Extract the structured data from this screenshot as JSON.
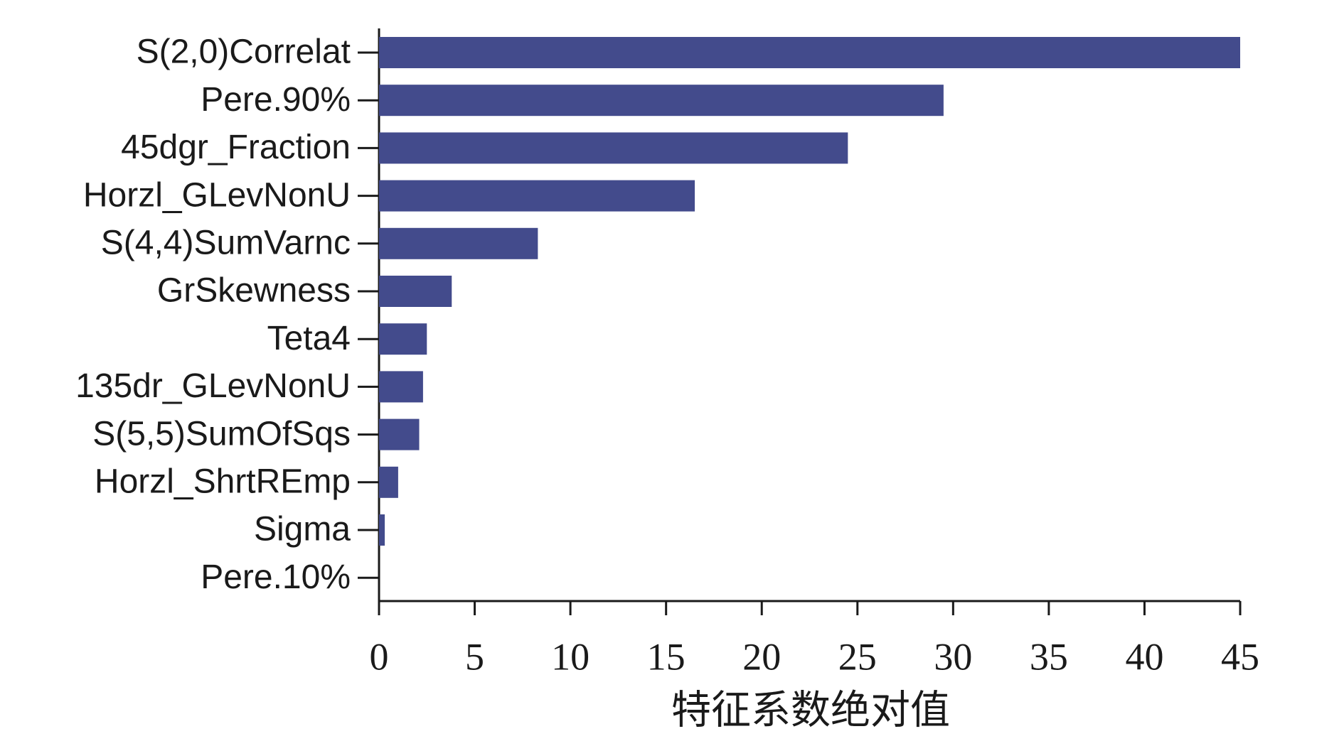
{
  "chart_data": {
    "type": "hbar",
    "x_label": "特征系数绝对值",
    "categories": [
      "S(2,0)Correlat",
      "Pere.90%",
      "45dgr_Fraction",
      "Horzl_GLevNonU",
      "S(4,4)SumVarnc",
      "GrSkewness",
      "Teta4",
      "135dr_GLevNonU",
      "S(5,5)SumOfSqs",
      "Horzl_ShrtREmp",
      "Sigma",
      "Pere.10%"
    ],
    "values": [
      45.0,
      29.5,
      24.5,
      16.5,
      8.3,
      3.8,
      2.5,
      2.3,
      2.1,
      1.0,
      0.3,
      0
    ],
    "color": "#434b8c",
    "xlim": [
      0,
      45
    ],
    "xticks": [
      0,
      5,
      10,
      15,
      20,
      25,
      30,
      35,
      40,
      45
    ]
  }
}
